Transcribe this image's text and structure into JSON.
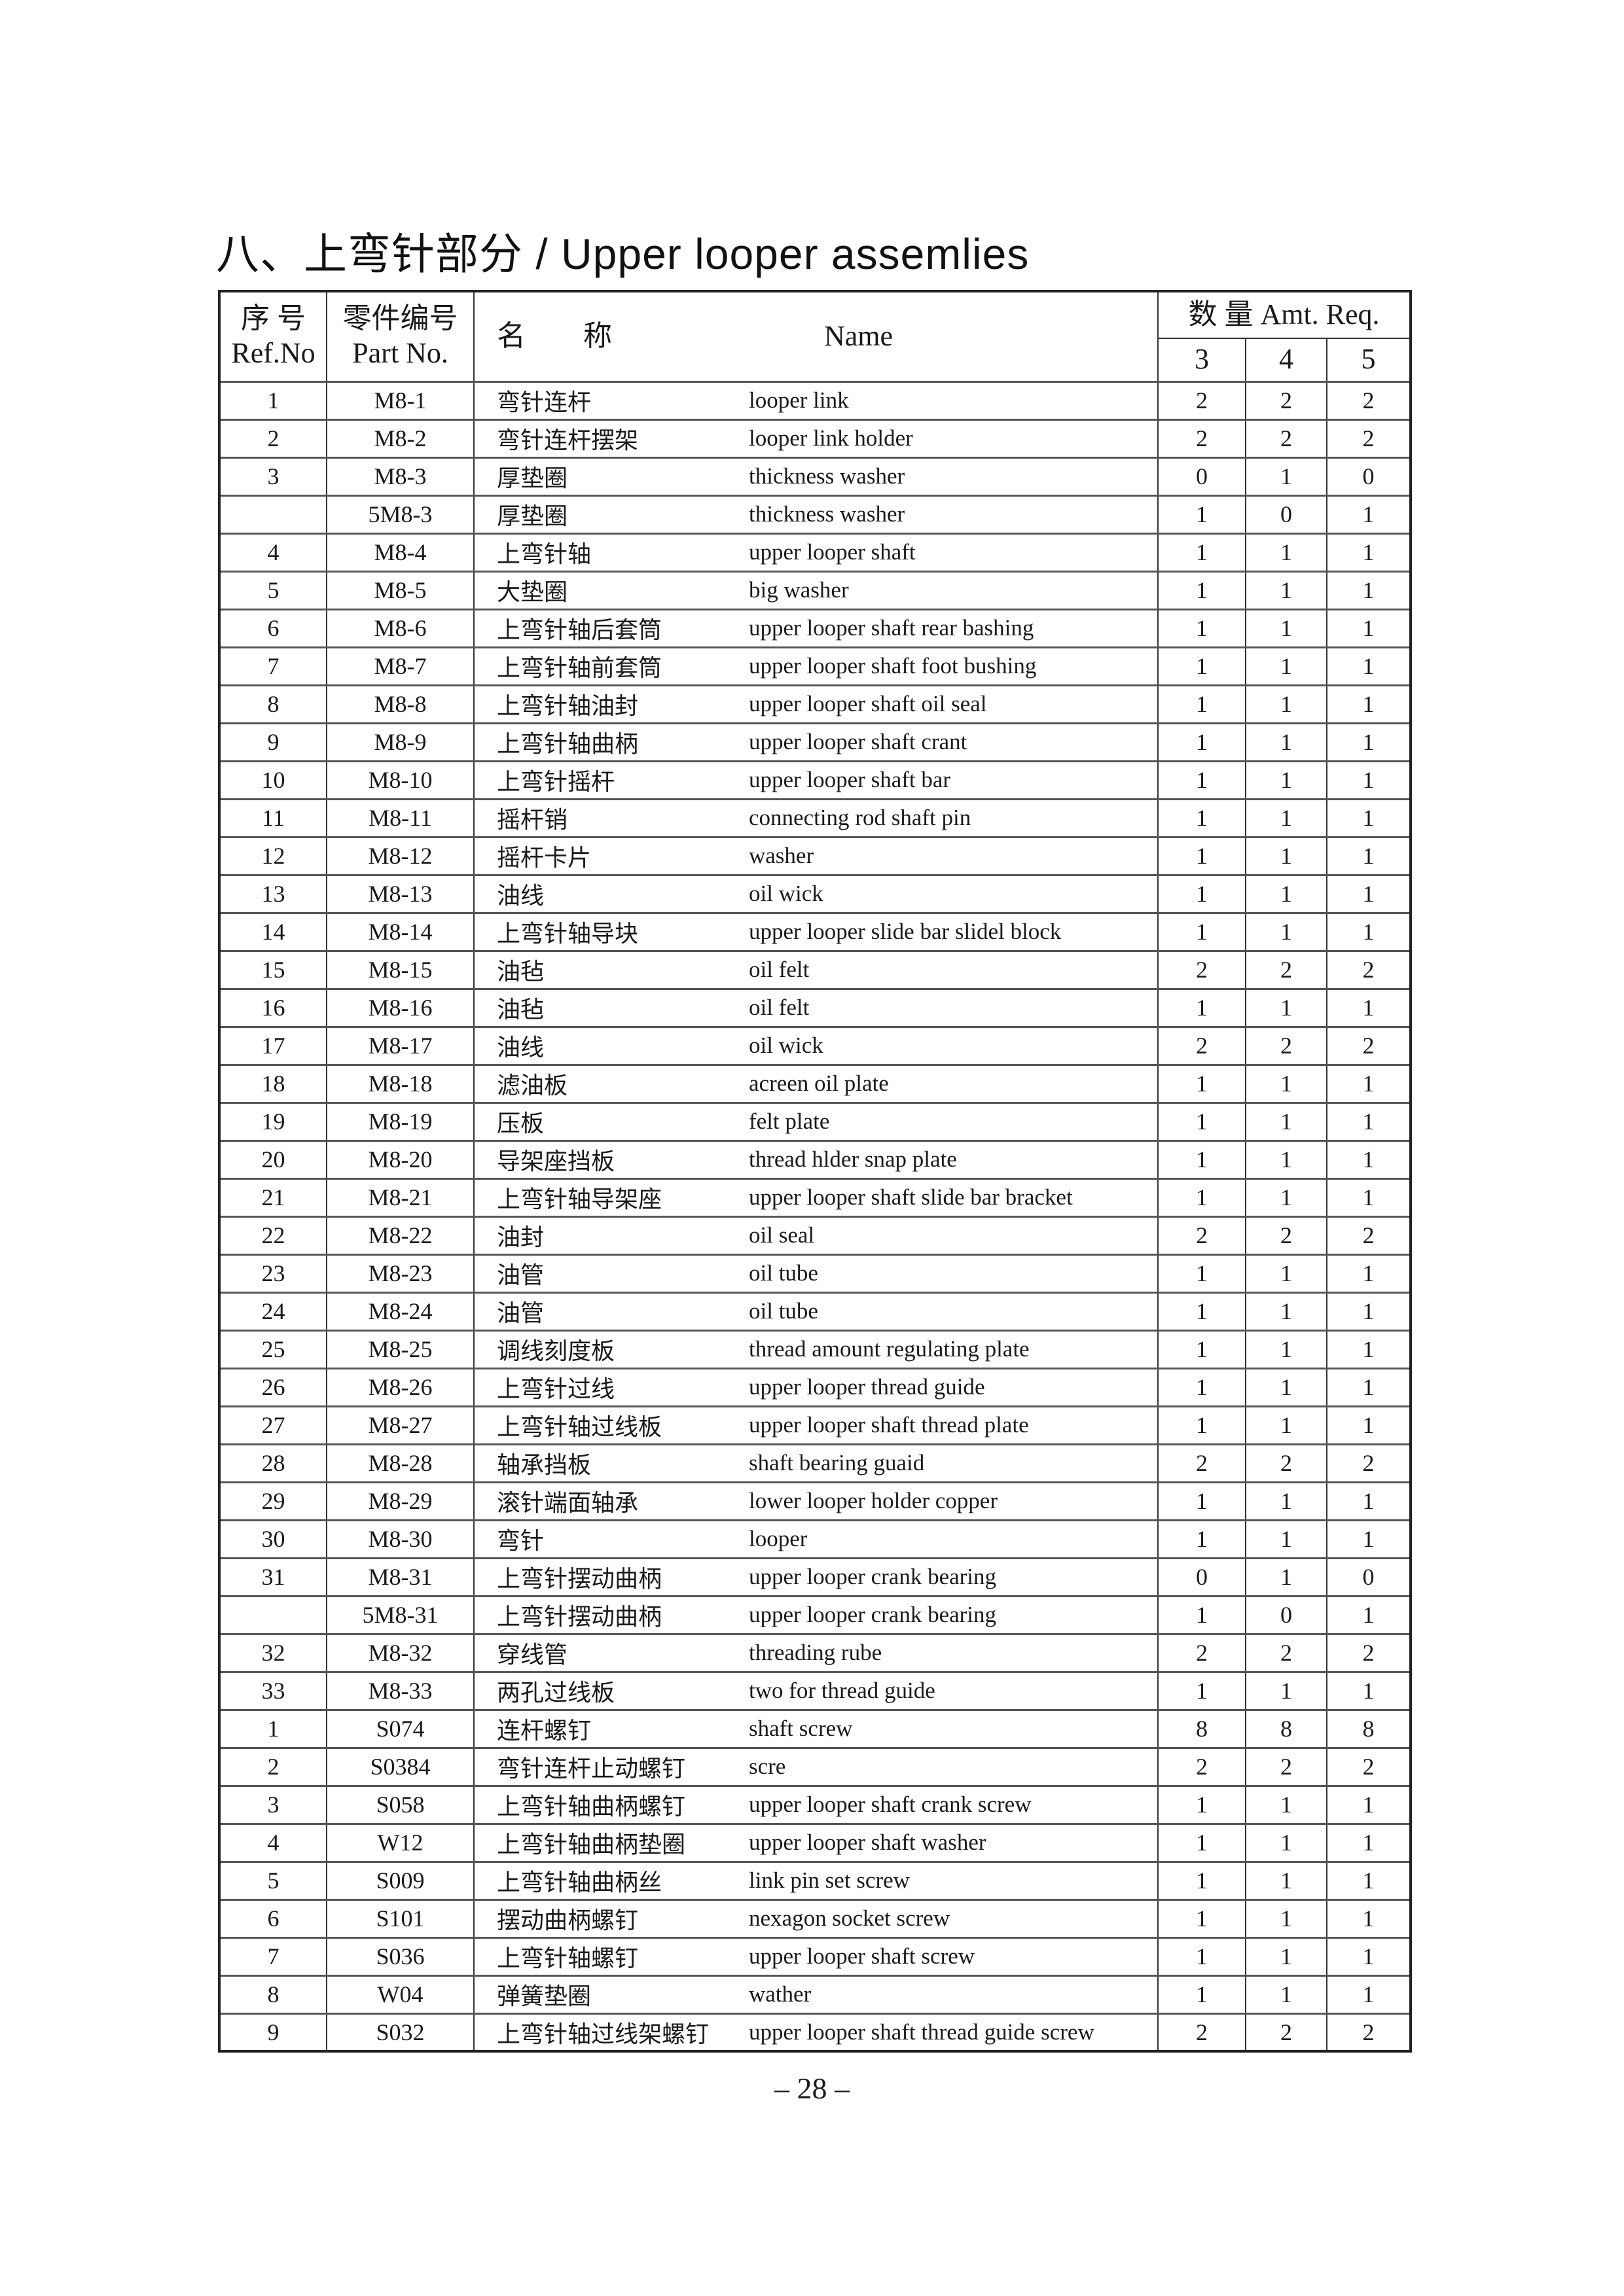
{
  "title": "八、上弯针部分 / Upper looper assemlies",
  "header": {
    "ref_cn": "序 号",
    "ref_en": "Ref.No",
    "part_cn": "零件编号",
    "part_en": "Part No.",
    "name_cn": "名　　称",
    "name_en": "Name",
    "amt": "数 量 Amt. Req.",
    "amt_cols": [
      "3",
      "4",
      "5"
    ]
  },
  "rows": [
    [
      "1",
      "M8-1",
      "弯针连杆",
      "looper link",
      "2",
      "2",
      "2"
    ],
    [
      "2",
      "M8-2",
      "弯针连杆摆架",
      "looper link holder",
      "2",
      "2",
      "2"
    ],
    [
      "3",
      "M8-3",
      "厚垫圈",
      "thickness washer",
      "0",
      "1",
      "0"
    ],
    [
      "",
      "5M8-3",
      "厚垫圈",
      "thickness washer",
      "1",
      "0",
      "1"
    ],
    [
      "4",
      "M8-4",
      "上弯针轴",
      "upper looper shaft",
      "1",
      "1",
      "1"
    ],
    [
      "5",
      "M8-5",
      "大垫圈",
      "big washer",
      "1",
      "1",
      "1"
    ],
    [
      "6",
      "M8-6",
      "上弯针轴后套筒",
      "upper looper shaft rear bashing",
      "1",
      "1",
      "1"
    ],
    [
      "7",
      "M8-7",
      "上弯针轴前套筒",
      "upper looper shaft foot bushing",
      "1",
      "1",
      "1"
    ],
    [
      "8",
      "M8-8",
      "上弯针轴油封",
      "upper looper shaft oil seal",
      "1",
      "1",
      "1"
    ],
    [
      "9",
      "M8-9",
      "上弯针轴曲柄",
      "upper looper shaft crant",
      "1",
      "1",
      "1"
    ],
    [
      "10",
      "M8-10",
      "上弯针摇杆",
      "upper looper shaft bar",
      "1",
      "1",
      "1"
    ],
    [
      "11",
      "M8-11",
      "摇杆销",
      "connecting rod shaft pin",
      "1",
      "1",
      "1"
    ],
    [
      "12",
      "M8-12",
      "摇杆卡片",
      "washer",
      "1",
      "1",
      "1"
    ],
    [
      "13",
      "M8-13",
      "油线",
      "oil wick",
      "1",
      "1",
      "1"
    ],
    [
      "14",
      "M8-14",
      "上弯针轴导块",
      "upper looper slide bar slidel block",
      "1",
      "1",
      "1"
    ],
    [
      "15",
      "M8-15",
      "油毡",
      "oil felt",
      "2",
      "2",
      "2"
    ],
    [
      "16",
      "M8-16",
      "油毡",
      "oil felt",
      "1",
      "1",
      "1"
    ],
    [
      "17",
      "M8-17",
      "油线",
      "oil wick",
      "2",
      "2",
      "2"
    ],
    [
      "18",
      "M8-18",
      "滤油板",
      "acreen oil plate",
      "1",
      "1",
      "1"
    ],
    [
      "19",
      "M8-19",
      "压板",
      "felt plate",
      "1",
      "1",
      "1"
    ],
    [
      "20",
      "M8-20",
      "导架座挡板",
      "thread hlder snap plate",
      "1",
      "1",
      "1"
    ],
    [
      "21",
      "M8-21",
      "上弯针轴导架座",
      "upper looper shaft slide bar bracket",
      "1",
      "1",
      "1"
    ],
    [
      "22",
      "M8-22",
      "油封",
      "oil seal",
      "2",
      "2",
      "2"
    ],
    [
      "23",
      "M8-23",
      "油管",
      "oil tube",
      "1",
      "1",
      "1"
    ],
    [
      "24",
      "M8-24",
      "油管",
      "oil tube",
      "1",
      "1",
      "1"
    ],
    [
      "25",
      "M8-25",
      "调线刻度板",
      "thread amount regulating plate",
      "1",
      "1",
      "1"
    ],
    [
      "26",
      "M8-26",
      "上弯针过线",
      "upper looper thread guide",
      "1",
      "1",
      "1"
    ],
    [
      "27",
      "M8-27",
      "上弯针轴过线板",
      "upper looper shaft thread plate",
      "1",
      "1",
      "1"
    ],
    [
      "28",
      "M8-28",
      "轴承挡板",
      "shaft bearing guaid",
      "2",
      "2",
      "2"
    ],
    [
      "29",
      "M8-29",
      "滚针端面轴承",
      "lower looper holder copper",
      "1",
      "1",
      "1"
    ],
    [
      "30",
      "M8-30",
      "弯针",
      "looper",
      "1",
      "1",
      "1"
    ],
    [
      "31",
      "M8-31",
      "上弯针摆动曲柄",
      "upper looper crank bearing",
      "0",
      "1",
      "0"
    ],
    [
      "",
      "5M8-31",
      "上弯针摆动曲柄",
      "upper looper crank bearing",
      "1",
      "0",
      "1"
    ],
    [
      "32",
      "M8-32",
      "穿线管",
      "threading rube",
      "2",
      "2",
      "2"
    ],
    [
      "33",
      "M8-33",
      "两孔过线板",
      "two for thread guide",
      "1",
      "1",
      "1"
    ],
    [
      "1",
      "S074",
      "连杆螺钉",
      "shaft screw",
      "8",
      "8",
      "8"
    ],
    [
      "2",
      "S0384",
      "弯针连杆止动螺钉",
      "scre",
      "2",
      "2",
      "2"
    ],
    [
      "3",
      "S058",
      "上弯针轴曲柄螺钉",
      "upper looper shaft crank screw",
      "1",
      "1",
      "1"
    ],
    [
      "4",
      "W12",
      "上弯针轴曲柄垫圈",
      "upper looper shaft washer",
      "1",
      "1",
      "1"
    ],
    [
      "5",
      "S009",
      "上弯针轴曲柄丝",
      "link pin set screw",
      "1",
      "1",
      "1"
    ],
    [
      "6",
      "S101",
      "摆动曲柄螺钉",
      "nexagon socket screw",
      "1",
      "1",
      "1"
    ],
    [
      "7",
      "S036",
      "上弯针轴螺钉",
      "upper looper shaft screw",
      "1",
      "1",
      "1"
    ],
    [
      "8",
      "W04",
      "弹簧垫圈",
      "wather",
      "1",
      "1",
      "1"
    ],
    [
      "9",
      "S032",
      "上弯针轴过线架螺钉",
      "upper looper shaft thread guide screw",
      "2",
      "2",
      "2"
    ]
  ],
  "page_number": "– 28 –"
}
